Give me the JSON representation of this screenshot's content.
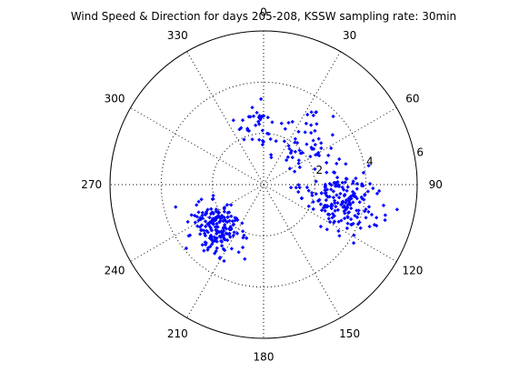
{
  "chart_data": {
    "type": "scatter",
    "subtype": "polar",
    "title": "Wind Speed & Direction for days 205-208, KSSW sampling rate: 30min",
    "angle_zero": "top",
    "angle_direction": "clockwise",
    "angle_tick_labels": [
      "0",
      "30",
      "60",
      "90",
      "120",
      "150",
      "180",
      "210",
      "240",
      "270",
      "300",
      "330"
    ],
    "radial_tick_labels": [
      "2",
      "4",
      "6"
    ],
    "radial_ticks": [
      2,
      4,
      6
    ],
    "rlim": [
      0,
      6
    ],
    "grid": true,
    "marker": "+",
    "series": [
      {
        "color": "#0000ff",
        "clusters": [
          {
            "theta_center": 228,
            "r_center": 2.55,
            "theta_spread": 12,
            "r_spread": 0.5,
            "count": 190,
            "seed": 11
          },
          {
            "theta_center": 101,
            "r_center": 3.15,
            "theta_spread": 10,
            "r_spread": 0.7,
            "count": 190,
            "seed": 23
          },
          {
            "theta_center": 48,
            "r_center": 2.35,
            "theta_spread": 11,
            "r_spread": 0.6,
            "count": 55,
            "seed": 37
          },
          {
            "theta_center": 358,
            "r_center": 2.25,
            "theta_spread": 14,
            "r_spread": 0.45,
            "count": 40,
            "seed": 41
          }
        ]
      }
    ]
  }
}
